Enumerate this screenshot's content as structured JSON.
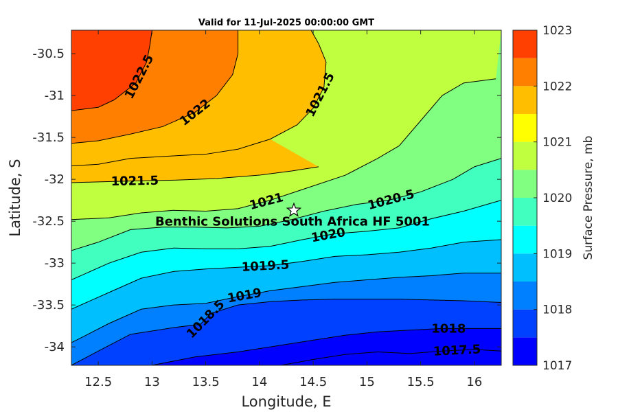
{
  "chart_data": {
    "type": "heatmap",
    "subtype": "filled-contour",
    "title": "Valid for 11-Jul-2025 00:00:00 GMT",
    "xlabel": "Longitude, E",
    "ylabel": "Latitude, S",
    "xlim": [
      12.25,
      16.25
    ],
    "ylim": [
      -34.22,
      -30.22
    ],
    "xticks": [
      "12.5",
      "13",
      "13.5",
      "14",
      "14.5",
      "15",
      "15.5",
      "16"
    ],
    "xtick_values": [
      12.5,
      13,
      13.5,
      14,
      14.5,
      15,
      15.5,
      16
    ],
    "yticks": [
      "-30.5",
      "-31",
      "-31.5",
      "-32",
      "-32.5",
      "-33",
      "-33.5",
      "-34"
    ],
    "ytick_values": [
      -30.5,
      -31,
      -31.5,
      -32,
      -32.5,
      -33,
      -33.5,
      -34
    ],
    "grid": false,
    "colorbar": {
      "label": "Surface Pressure, mb",
      "range": [
        1017,
        1023
      ],
      "ticks": [
        "1017",
        "1018",
        "1019",
        "1020",
        "1021",
        "1022",
        "1023"
      ],
      "tick_values": [
        1017,
        1018,
        1019,
        1020,
        1021,
        1022,
        1023
      ],
      "levels": [
        1017,
        1017.5,
        1018,
        1018.5,
        1019,
        1019.5,
        1020,
        1020.5,
        1021,
        1021.5,
        1022,
        1022.5,
        1023
      ],
      "colors": [
        "#0000ff",
        "#0040ff",
        "#0080ff",
        "#00bfff",
        "#00ffff",
        "#40ffbf",
        "#80ff80",
        "#bfff40",
        "#ffff00",
        "#ffbf00",
        "#ff8000",
        "#ff4000"
      ]
    },
    "contours": [
      {
        "level": 1022.5,
        "label": "1022.5",
        "points": [
          [
            12.25,
            -31.18
          ],
          [
            12.5,
            -31.14
          ],
          [
            12.65,
            -31.05
          ],
          [
            12.85,
            -30.85
          ],
          [
            12.95,
            -30.6
          ],
          [
            12.98,
            -30.4
          ],
          [
            13.0,
            -30.22
          ]
        ]
      },
      {
        "level": 1022,
        "label": "1022",
        "points": [
          [
            12.25,
            -31.57
          ],
          [
            12.5,
            -31.54
          ],
          [
            12.8,
            -31.46
          ],
          [
            13.1,
            -31.37
          ],
          [
            13.4,
            -31.2
          ],
          [
            13.6,
            -31.0
          ],
          [
            13.75,
            -30.75
          ],
          [
            13.8,
            -30.5
          ],
          [
            13.8,
            -30.22
          ]
        ]
      },
      {
        "level": 1021.5,
        "label": "1021.5",
        "points": [
          [
            12.25,
            -31.84
          ],
          [
            12.5,
            -31.82
          ],
          [
            12.8,
            -31.75
          ],
          [
            13.2,
            -31.72
          ],
          [
            13.5,
            -31.7
          ],
          [
            13.8,
            -31.64
          ],
          [
            14.1,
            -31.52
          ],
          [
            14.35,
            -31.35
          ],
          [
            14.5,
            -31.15
          ],
          [
            14.6,
            -30.9
          ],
          [
            14.62,
            -30.6
          ],
          [
            14.55,
            -30.38
          ],
          [
            14.48,
            -30.22
          ]
        ]
      },
      {
        "level": 1021.5,
        "label": "1021.5",
        "points": [
          [
            12.25,
            -32.04
          ],
          [
            12.5,
            -32.03
          ],
          [
            12.8,
            -32.02
          ],
          [
            13.2,
            -32.01
          ],
          [
            13.6,
            -31.99
          ],
          [
            14.0,
            -31.95
          ],
          [
            14.3,
            -31.9
          ],
          [
            14.55,
            -31.85
          ]
        ]
      },
      {
        "level": 1021,
        "label": "1021",
        "points": [
          [
            12.25,
            -32.48
          ],
          [
            12.6,
            -32.46
          ],
          [
            12.9,
            -32.4
          ],
          [
            13.2,
            -32.37
          ],
          [
            13.5,
            -32.38
          ],
          [
            13.8,
            -32.35
          ],
          [
            14.1,
            -32.25
          ],
          [
            14.45,
            -32.1
          ],
          [
            14.8,
            -31.95
          ],
          [
            15.1,
            -31.75
          ],
          [
            15.3,
            -31.6
          ],
          [
            15.5,
            -31.3
          ],
          [
            15.7,
            -31.0
          ],
          [
            15.9,
            -30.85
          ],
          [
            16.2,
            -30.8
          ]
        ]
      },
      {
        "level": 1020.5,
        "label": "1020.5",
        "points": [
          [
            12.25,
            -32.85
          ],
          [
            12.5,
            -32.75
          ],
          [
            12.8,
            -32.6
          ],
          [
            13.1,
            -32.57
          ],
          [
            13.4,
            -32.57
          ],
          [
            13.7,
            -32.58
          ],
          [
            14.0,
            -32.56
          ],
          [
            14.3,
            -32.48
          ],
          [
            14.6,
            -32.38
          ],
          [
            14.9,
            -32.3
          ],
          [
            15.2,
            -32.25
          ],
          [
            15.5,
            -32.15
          ],
          [
            15.8,
            -32.0
          ],
          [
            16.0,
            -31.85
          ],
          [
            16.25,
            -31.75
          ]
        ]
      },
      {
        "level": 1020,
        "label": "1020",
        "points": [
          [
            12.25,
            -33.2
          ],
          [
            12.6,
            -33.0
          ],
          [
            12.9,
            -32.87
          ],
          [
            13.2,
            -32.82
          ],
          [
            13.5,
            -32.83
          ],
          [
            13.8,
            -32.83
          ],
          [
            14.1,
            -32.8
          ],
          [
            14.4,
            -32.72
          ],
          [
            14.7,
            -32.65
          ],
          [
            15.0,
            -32.62
          ],
          [
            15.3,
            -32.58
          ],
          [
            15.6,
            -32.47
          ],
          [
            15.9,
            -32.38
          ],
          [
            16.25,
            -32.25
          ]
        ]
      },
      {
        "level": 1019.5,
        "label": "1019.5",
        "points": [
          [
            12.25,
            -33.55
          ],
          [
            12.6,
            -33.35
          ],
          [
            12.9,
            -33.18
          ],
          [
            13.2,
            -33.1
          ],
          [
            13.5,
            -33.07
          ],
          [
            13.8,
            -33.05
          ],
          [
            14.1,
            -33.03
          ],
          [
            14.4,
            -32.98
          ],
          [
            14.7,
            -32.92
          ],
          [
            15.0,
            -32.9
          ],
          [
            15.3,
            -32.87
          ],
          [
            15.6,
            -32.82
          ],
          [
            15.9,
            -32.75
          ],
          [
            16.25,
            -32.72
          ]
        ]
      },
      {
        "level": 1019,
        "label": "1019",
        "points": [
          [
            12.25,
            -33.95
          ],
          [
            12.6,
            -33.72
          ],
          [
            12.9,
            -33.55
          ],
          [
            13.2,
            -33.5
          ],
          [
            13.5,
            -33.48
          ],
          [
            13.8,
            -33.4
          ],
          [
            14.1,
            -33.33
          ],
          [
            14.4,
            -33.28
          ],
          [
            14.7,
            -33.23
          ],
          [
            15.0,
            -33.2
          ],
          [
            15.3,
            -33.17
          ],
          [
            15.6,
            -33.15
          ],
          [
            15.9,
            -33.12
          ],
          [
            16.25,
            -33.12
          ]
        ]
      },
      {
        "level": 1018.5,
        "label": "1018.5",
        "points": [
          [
            12.25,
            -34.22
          ],
          [
            12.5,
            -34.05
          ],
          [
            12.8,
            -33.85
          ],
          [
            13.2,
            -33.77
          ],
          [
            13.45,
            -33.73
          ],
          [
            13.55,
            -33.6
          ],
          [
            13.8,
            -33.5
          ],
          [
            14.1,
            -33.46
          ],
          [
            14.4,
            -33.44
          ],
          [
            14.7,
            -33.43
          ],
          [
            15.0,
            -33.43
          ],
          [
            15.3,
            -33.43
          ],
          [
            15.6,
            -33.44
          ],
          [
            15.9,
            -33.45
          ],
          [
            16.25,
            -33.47
          ]
        ]
      },
      {
        "level": 1018,
        "label": "1018",
        "points": [
          [
            13.0,
            -34.22
          ],
          [
            13.4,
            -34.12
          ],
          [
            13.8,
            -34.06
          ],
          [
            14.2,
            -33.98
          ],
          [
            14.5,
            -33.92
          ],
          [
            14.8,
            -33.86
          ],
          [
            15.1,
            -33.82
          ],
          [
            15.4,
            -33.8
          ],
          [
            15.7,
            -33.78
          ],
          [
            16.0,
            -33.78
          ],
          [
            16.25,
            -33.78
          ]
        ]
      },
      {
        "level": 1017.5,
        "label": "1017.5",
        "points": [
          [
            14.2,
            -34.22
          ],
          [
            14.5,
            -34.15
          ],
          [
            14.8,
            -34.09
          ],
          [
            15.1,
            -34.06
          ],
          [
            15.4,
            -34.08
          ],
          [
            15.7,
            -34.05
          ],
          [
            16.0,
            -34.03
          ],
          [
            16.25,
            -34.05
          ]
        ]
      }
    ],
    "annotations": [
      {
        "text": "Benthic Solutions South Africa HF 5001",
        "lon": 14.32,
        "lat": -32.37,
        "marker": "star"
      }
    ]
  }
}
